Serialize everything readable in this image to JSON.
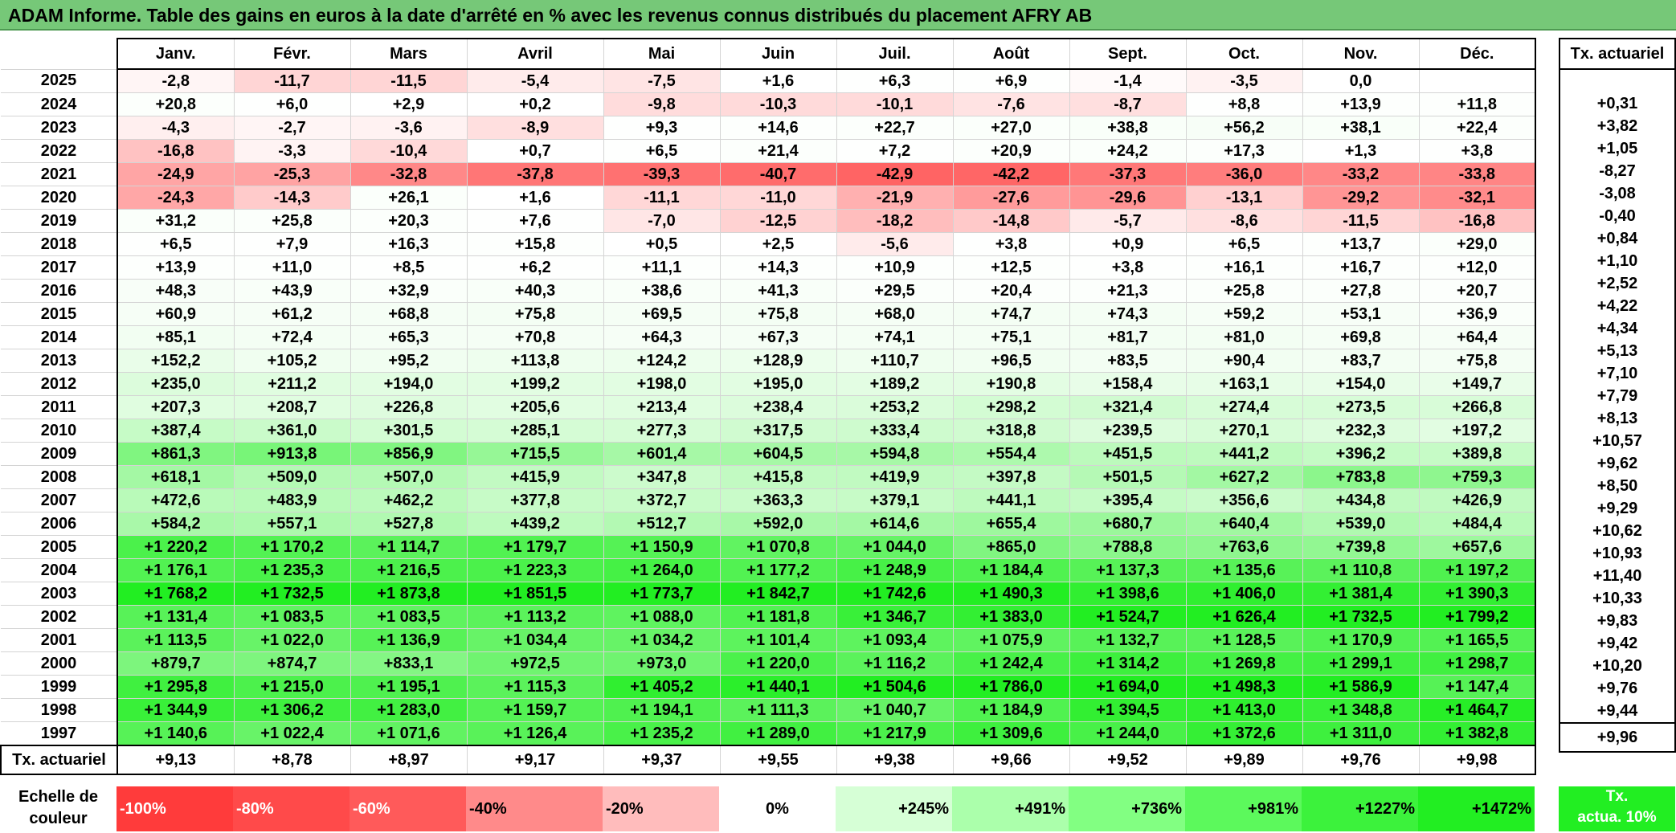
{
  "title": "ADAM Informe. Table des gains en euros à la date d'arrêté en % avec les revenus connus distribués du placement AFRY AB",
  "months": [
    "Janv.",
    "Févr.",
    "Mars",
    "Avril",
    "Mai",
    "Juin",
    "Juil.",
    "Août",
    "Sept.",
    "Oct.",
    "Nov.",
    "Déc."
  ],
  "rate_header": "Tx. actuariel",
  "rows": [
    {
      "year": "2025",
      "values": [
        "-2,8",
        "-11,7",
        "-11,5",
        "-5,4",
        "-7,5",
        "+1,6",
        "+6,3",
        "+6,9",
        "-1,4",
        "-3,5",
        "0,0",
        ""
      ],
      "rate": ""
    },
    {
      "year": "2024",
      "values": [
        "+20,8",
        "+6,0",
        "+2,9",
        "+0,2",
        "-9,8",
        "-10,3",
        "-10,1",
        "-7,6",
        "-8,7",
        "+8,8",
        "+13,9",
        "+11,8"
      ],
      "rate": "+0,31"
    },
    {
      "year": "2023",
      "values": [
        "-4,3",
        "-2,7",
        "-3,6",
        "-8,9",
        "+9,3",
        "+14,6",
        "+22,7",
        "+27,0",
        "+38,8",
        "+56,2",
        "+38,1",
        "+22,4"
      ],
      "rate": "+3,82"
    },
    {
      "year": "2022",
      "values": [
        "-16,8",
        "-3,3",
        "-10,4",
        "+0,7",
        "+6,5",
        "+21,4",
        "+7,2",
        "+20,9",
        "+24,2",
        "+17,3",
        "+1,3",
        "+3,8"
      ],
      "rate": "+1,05"
    },
    {
      "year": "2021",
      "values": [
        "-24,9",
        "-25,3",
        "-32,8",
        "-37,8",
        "-39,3",
        "-40,7",
        "-42,9",
        "-42,2",
        "-37,3",
        "-36,0",
        "-33,2",
        "-33,8"
      ],
      "rate": "-8,27"
    },
    {
      "year": "2020",
      "values": [
        "-24,3",
        "-14,3",
        "+26,1",
        "+1,6",
        "-11,1",
        "-11,0",
        "-21,9",
        "-27,6",
        "-29,6",
        "-13,1",
        "-29,2",
        "-32,1"
      ],
      "rate": "-3,08"
    },
    {
      "year": "2019",
      "values": [
        "+31,2",
        "+25,8",
        "+20,3",
        "+7,6",
        "-7,0",
        "-12,5",
        "-18,2",
        "-14,8",
        "-5,7",
        "-8,6",
        "-11,5",
        "-16,8"
      ],
      "rate": "-0,40"
    },
    {
      "year": "2018",
      "values": [
        "+6,5",
        "+7,9",
        "+16,3",
        "+15,8",
        "+0,5",
        "+2,5",
        "-5,6",
        "+3,8",
        "+0,9",
        "+6,5",
        "+13,7",
        "+29,0"
      ],
      "rate": "+0,84"
    },
    {
      "year": "2017",
      "values": [
        "+13,9",
        "+11,0",
        "+8,5",
        "+6,2",
        "+11,1",
        "+14,3",
        "+10,9",
        "+12,5",
        "+3,8",
        "+16,1",
        "+16,7",
        "+12,0"
      ],
      "rate": "+1,10"
    },
    {
      "year": "2016",
      "values": [
        "+48,3",
        "+43,9",
        "+32,9",
        "+40,3",
        "+38,6",
        "+41,3",
        "+29,5",
        "+20,4",
        "+21,3",
        "+25,8",
        "+27,8",
        "+20,7"
      ],
      "rate": "+2,52"
    },
    {
      "year": "2015",
      "values": [
        "+60,9",
        "+61,2",
        "+68,8",
        "+75,8",
        "+69,5",
        "+75,8",
        "+68,0",
        "+74,7",
        "+74,3",
        "+59,2",
        "+53,1",
        "+36,9"
      ],
      "rate": "+4,22"
    },
    {
      "year": "2014",
      "values": [
        "+85,1",
        "+72,4",
        "+65,3",
        "+70,8",
        "+64,3",
        "+67,3",
        "+74,1",
        "+75,1",
        "+81,7",
        "+81,0",
        "+69,8",
        "+64,4"
      ],
      "rate": "+4,34"
    },
    {
      "year": "2013",
      "values": [
        "+152,2",
        "+105,2",
        "+95,2",
        "+113,8",
        "+124,2",
        "+128,9",
        "+110,7",
        "+96,5",
        "+83,5",
        "+90,4",
        "+83,7",
        "+75,8"
      ],
      "rate": "+5,13"
    },
    {
      "year": "2012",
      "values": [
        "+235,0",
        "+211,2",
        "+194,0",
        "+199,2",
        "+198,0",
        "+195,0",
        "+189,2",
        "+190,8",
        "+158,4",
        "+163,1",
        "+154,0",
        "+149,7"
      ],
      "rate": "+7,10"
    },
    {
      "year": "2011",
      "values": [
        "+207,3",
        "+208,7",
        "+226,8",
        "+205,6",
        "+213,4",
        "+238,4",
        "+253,2",
        "+298,2",
        "+321,4",
        "+274,4",
        "+273,5",
        "+266,8"
      ],
      "rate": "+7,79"
    },
    {
      "year": "2010",
      "values": [
        "+387,4",
        "+361,0",
        "+301,5",
        "+285,1",
        "+277,3",
        "+317,5",
        "+333,4",
        "+318,8",
        "+239,5",
        "+270,1",
        "+232,3",
        "+197,2"
      ],
      "rate": "+8,13"
    },
    {
      "year": "2009",
      "values": [
        "+861,3",
        "+913,8",
        "+856,9",
        "+715,5",
        "+601,4",
        "+604,5",
        "+594,8",
        "+554,4",
        "+451,5",
        "+441,2",
        "+396,2",
        "+389,8"
      ],
      "rate": "+10,57"
    },
    {
      "year": "2008",
      "values": [
        "+618,1",
        "+509,0",
        "+507,0",
        "+415,9",
        "+347,8",
        "+415,8",
        "+419,9",
        "+397,8",
        "+501,5",
        "+627,2",
        "+783,8",
        "+759,3"
      ],
      "rate": "+9,62"
    },
    {
      "year": "2007",
      "values": [
        "+472,6",
        "+483,9",
        "+462,2",
        "+377,8",
        "+372,7",
        "+363,3",
        "+379,1",
        "+441,1",
        "+395,4",
        "+356,6",
        "+434,8",
        "+426,9"
      ],
      "rate": "+8,50"
    },
    {
      "year": "2006",
      "values": [
        "+584,2",
        "+557,1",
        "+527,8",
        "+439,2",
        "+512,7",
        "+592,0",
        "+614,6",
        "+655,4",
        "+680,7",
        "+640,4",
        "+539,0",
        "+484,4"
      ],
      "rate": "+9,29"
    },
    {
      "year": "2005",
      "values": [
        "+1 220,2",
        "+1 170,2",
        "+1 114,7",
        "+1 179,7",
        "+1 150,9",
        "+1 070,8",
        "+1 044,0",
        "+865,0",
        "+788,8",
        "+763,6",
        "+739,8",
        "+657,6"
      ],
      "rate": "+10,62"
    },
    {
      "year": "2004",
      "values": [
        "+1 176,1",
        "+1 235,3",
        "+1 216,5",
        "+1 223,3",
        "+1 264,0",
        "+1 177,2",
        "+1 248,9",
        "+1 184,4",
        "+1 137,3",
        "+1 135,6",
        "+1 110,8",
        "+1 197,2"
      ],
      "rate": "+10,93"
    },
    {
      "year": "2003",
      "values": [
        "+1 768,2",
        "+1 732,5",
        "+1 873,8",
        "+1 851,5",
        "+1 773,7",
        "+1 842,7",
        "+1 742,6",
        "+1 490,3",
        "+1 398,6",
        "+1 406,0",
        "+1 381,4",
        "+1 390,3"
      ],
      "rate": "+11,40"
    },
    {
      "year": "2002",
      "values": [
        "+1 131,4",
        "+1 083,5",
        "+1 083,5",
        "+1 113,2",
        "+1 088,0",
        "+1 181,8",
        "+1 346,7",
        "+1 383,0",
        "+1 524,7",
        "+1 626,4",
        "+1 732,5",
        "+1 799,2"
      ],
      "rate": "+10,33"
    },
    {
      "year": "2001",
      "values": [
        "+1 113,5",
        "+1 022,0",
        "+1 136,9",
        "+1 034,4",
        "+1 034,2",
        "+1 101,4",
        "+1 093,4",
        "+1 075,9",
        "+1 132,7",
        "+1 128,5",
        "+1 170,9",
        "+1 165,5"
      ],
      "rate": "+9,83"
    },
    {
      "year": "2000",
      "values": [
        "+879,7",
        "+874,7",
        "+833,1",
        "+972,5",
        "+973,0",
        "+1 220,0",
        "+1 116,2",
        "+1 242,4",
        "+1 314,2",
        "+1 269,8",
        "+1 299,1",
        "+1 298,7"
      ],
      "rate": "+9,42"
    },
    {
      "year": "1999",
      "values": [
        "+1 295,8",
        "+1 215,0",
        "+1 195,1",
        "+1 115,3",
        "+1 405,2",
        "+1 440,1",
        "+1 504,6",
        "+1 786,0",
        "+1 694,0",
        "+1 498,3",
        "+1 586,9",
        "+1 147,4"
      ],
      "rate": "+10,20"
    },
    {
      "year": "1998",
      "values": [
        "+1 344,9",
        "+1 306,2",
        "+1 283,0",
        "+1 159,7",
        "+1 194,1",
        "+1 111,3",
        "+1 040,7",
        "+1 184,9",
        "+1 394,5",
        "+1 413,0",
        "+1 348,8",
        "+1 464,7"
      ],
      "rate": "+9,76"
    },
    {
      "year": "1997",
      "values": [
        "+1 140,6",
        "+1 022,4",
        "+1 071,6",
        "+1 126,4",
        "+1 235,2",
        "+1 289,0",
        "+1 217,9",
        "+1 309,6",
        "+1 244,0",
        "+1 372,6",
        "+1 311,0",
        "+1 382,8"
      ],
      "rate": "+9,44"
    }
  ],
  "footer": {
    "label": "Tx. actuariel",
    "values": [
      "+9,13",
      "+8,78",
      "+8,97",
      "+9,17",
      "+9,37",
      "+9,55",
      "+9,38",
      "+9,66",
      "+9,52",
      "+9,89",
      "+9,76",
      "+9,98"
    ],
    "rate": "+9,96"
  },
  "legend": {
    "label_line1": "Echelle de",
    "label_line2": "couleur",
    "items": [
      {
        "text": "-100%",
        "color": "#ff3b3b",
        "align": "left"
      },
      {
        "text": "-80%",
        "color": "#ff4a4a",
        "align": "left"
      },
      {
        "text": "-60%",
        "color": "#ff5a5a",
        "align": "left"
      },
      {
        "text": "-40%",
        "color": "#ff8a8a",
        "align": "left"
      },
      {
        "text": "-20%",
        "color": "#ffbcbc",
        "align": "left"
      },
      {
        "text": "0%",
        "color": "#ffffff",
        "align": "center"
      },
      {
        "text": "+245%",
        "color": "#d6ffd6",
        "align": "right"
      },
      {
        "text": "+491%",
        "color": "#abffab",
        "align": "right"
      },
      {
        "text": "+736%",
        "color": "#82ff82",
        "align": "right"
      },
      {
        "text": "+981%",
        "color": "#5cf95c",
        "align": "right"
      },
      {
        "text": "+1227%",
        "color": "#3cf23c",
        "align": "right"
      },
      {
        "text": "+1472%",
        "color": "#22ee22",
        "align": "right"
      }
    ],
    "target_line1": "Tx.",
    "target_line2": "actua. 10%",
    "target_color": "#22ee22"
  },
  "colors": {
    "title_bg": "#76c878",
    "negative_max": "#ff3b3b",
    "positive_max": "#22ee22"
  }
}
